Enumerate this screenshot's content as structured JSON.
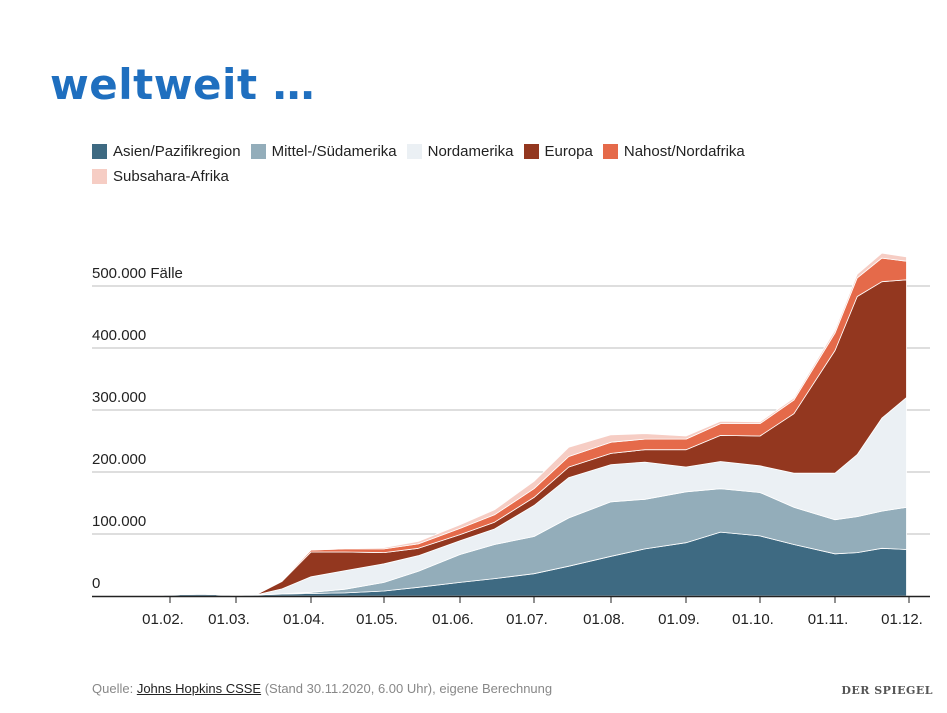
{
  "slide": {
    "title": "weltweit …"
  },
  "chart_data": {
    "type": "area",
    "stacked": true,
    "ylabel_unit": "Fälle",
    "ylim": [
      0,
      600000
    ],
    "y_ticks": [
      {
        "value": 0,
        "label": "0"
      },
      {
        "value": 100000,
        "label": "100.000"
      },
      {
        "value": 200000,
        "label": "200.000"
      },
      {
        "value": 300000,
        "label": "300.000"
      },
      {
        "value": 400000,
        "label": "400.000"
      },
      {
        "value": 500000,
        "label": "500.000 Fälle"
      }
    ],
    "x_ticks": [
      "01.02.",
      "01.03.",
      "01.04.",
      "01.05.",
      "01.06.",
      "01.07.",
      "01.08.",
      "01.09.",
      "01.10.",
      "01.11.",
      "01.12."
    ],
    "x": [
      "2020-01-22",
      "2020-02-01",
      "2020-02-15",
      "2020-03-01",
      "2020-03-10",
      "2020-03-20",
      "2020-04-01",
      "2020-04-15",
      "2020-05-01",
      "2020-05-15",
      "2020-06-01",
      "2020-06-15",
      "2020-07-01",
      "2020-07-15",
      "2020-08-01",
      "2020-08-15",
      "2020-09-01",
      "2020-09-15",
      "2020-10-01",
      "2020-10-15",
      "2020-11-01",
      "2020-11-10",
      "2020-11-20",
      "2020-11-30"
    ],
    "series": [
      {
        "name": "Asien/Pazifikregion",
        "color": "#3e6a82",
        "values": [
          0,
          2000,
          3000,
          1000,
          2000,
          3000,
          4000,
          5000,
          8000,
          14000,
          22000,
          28000,
          36000,
          48000,
          64000,
          76000,
          86000,
          103000,
          97000,
          83000,
          68000,
          70000,
          77000,
          75000
        ]
      },
      {
        "name": "Mittel-/Südamerika",
        "color": "#93adba",
        "values": [
          0,
          0,
          0,
          0,
          0,
          500,
          2000,
          6000,
          14000,
          26000,
          45000,
          55000,
          60000,
          78000,
          88000,
          80000,
          82000,
          70000,
          70000,
          60000,
          55000,
          58000,
          60000,
          68000
        ]
      },
      {
        "name": "Nordamerika",
        "color": "#ebf0f4",
        "values": [
          0,
          0,
          0,
          0,
          500,
          8000,
          25000,
          30000,
          30000,
          25000,
          22000,
          25000,
          50000,
          65000,
          60000,
          60000,
          40000,
          44000,
          43000,
          55000,
          75000,
          100000,
          150000,
          177000
        ]
      },
      {
        "name": "Europa",
        "color": "#93371f",
        "values": [
          0,
          0,
          0,
          0,
          1000,
          12000,
          40000,
          30000,
          18000,
          12000,
          10000,
          11000,
          13000,
          17000,
          18000,
          20000,
          28000,
          42000,
          48000,
          96000,
          198000,
          255000,
          220000,
          190000
        ]
      },
      {
        "name": "Nahost/Nordafrika",
        "color": "#e56a4a",
        "values": [
          0,
          0,
          0,
          0,
          300,
          1500,
          3000,
          5000,
          6000,
          7000,
          10000,
          12000,
          14000,
          17000,
          18000,
          17000,
          17000,
          19000,
          20000,
          22000,
          28000,
          30000,
          38000,
          30000
        ]
      },
      {
        "name": "Subsahara-Afrika",
        "color": "#f6cdc4",
        "values": [
          0,
          0,
          0,
          0,
          0,
          100,
          500,
          1000,
          2000,
          4000,
          6000,
          8000,
          12000,
          15000,
          12000,
          9000,
          5000,
          4000,
          3000,
          3500,
          5000,
          6000,
          8000,
          7000
        ]
      }
    ]
  },
  "footer": {
    "source_prefix": "Quelle: ",
    "source_link": "Johns Hopkins CSSE",
    "source_suffix": " (Stand 30.11.2020, 6.00 Uhr), eigene Berechnung",
    "brand": "DER SPIEGEL"
  }
}
